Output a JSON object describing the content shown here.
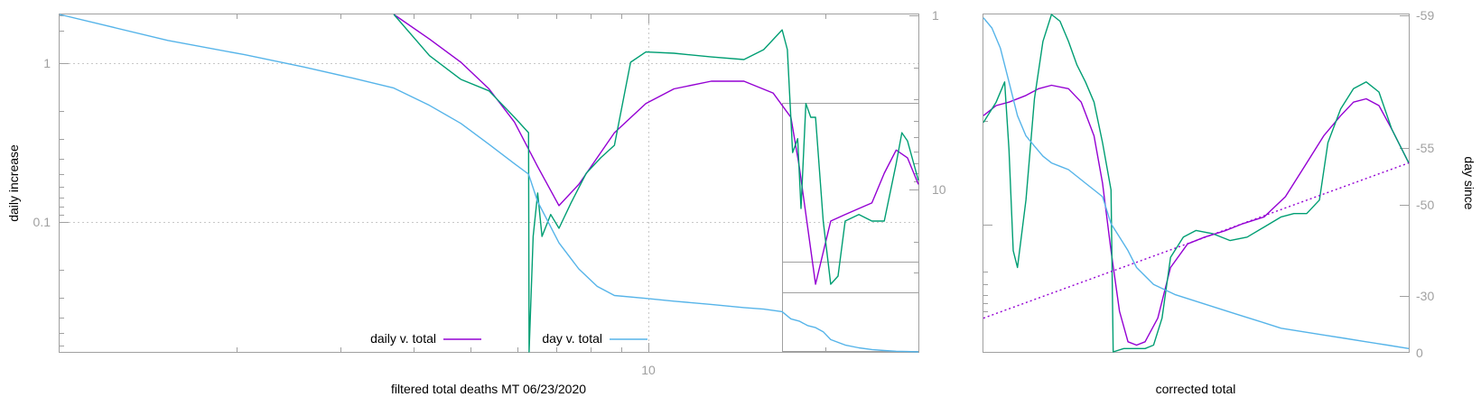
{
  "colors": {
    "purple": "#9400d3",
    "green": "#009e73",
    "blue": "#56b4e9",
    "axis": "#a0a0a0",
    "grid": "#c8c8c8"
  },
  "chart_data": [
    {
      "type": "line",
      "title": "",
      "xlabel": "filtered total deaths MT 06/23/2020",
      "ylabel": "daily increase",
      "xscale": "log",
      "yscale": "log",
      "xlim": [
        1,
        25
      ],
      "ylim": [
        0.015,
        2
      ],
      "y2lim": [
        1,
        30
      ],
      "y2scale": "log",
      "grid": true,
      "x_tick_labels": [
        {
          "value": 10,
          "label": "10"
        }
      ],
      "y_tick_labels": [
        {
          "value": 1,
          "label": "1"
        },
        {
          "value": 0.1,
          "label": "0.1"
        }
      ],
      "y2_tick_labels": [
        {
          "value": 1,
          "label": "1"
        },
        {
          "value": 10,
          "label": "10"
        }
      ],
      "legend": {
        "placement": "bottom-center",
        "entries": [
          {
            "label": "daily v. total",
            "color": "#9400d3"
          },
          {
            "label": "day v. total",
            "color": "#56b4e9"
          }
        ]
      },
      "series": [
        {
          "name": "daily v. total",
          "color": "#9400d3",
          "x": [
            3.5,
            4.0,
            4.5,
            5.0,
            5.5,
            6.0,
            6.5,
            7.0,
            8.0,
            9.0,
            10.0,
            11.5,
            13.0,
            14.5,
            15.5,
            16.0,
            17.0,
            18.0,
            19.0,
            20.0,
            21.0,
            22.0,
            23.0,
            24.0,
            25.0
          ],
          "y": [
            2.0,
            1.4,
            1.0,
            0.68,
            0.42,
            0.22,
            0.125,
            0.17,
            0.36,
            0.55,
            0.68,
            0.76,
            0.76,
            0.64,
            0.45,
            0.22,
            0.04,
            0.1,
            0.11,
            0.12,
            0.13,
            0.2,
            0.28,
            0.25,
            0.17
          ]
        },
        {
          "name": "",
          "color": "#009e73",
          "x": [
            3.5,
            4.0,
            4.5,
            5.0,
            5.5,
            5.8,
            5.81,
            5.9,
            6.0,
            6.1,
            6.3,
            6.5,
            6.8,
            7.2,
            7.6,
            8.0,
            8.5,
            9.0,
            10.0,
            11.5,
            13.0,
            14.0,
            15.0,
            15.3,
            15.6,
            15.9,
            16.1,
            16.4,
            16.7,
            17.0,
            17.5,
            18.0,
            18.5,
            19.0,
            20.0,
            21.0,
            21.5,
            22.0,
            23.0,
            23.5,
            24.0,
            25.0
          ],
          "y": [
            2.0,
            1.1,
            0.78,
            0.66,
            0.45,
            0.36,
            0.015,
            0.08,
            0.15,
            0.08,
            0.11,
            0.09,
            0.13,
            0.2,
            0.25,
            0.3,
            1.0,
            1.16,
            1.14,
            1.08,
            1.04,
            1.2,
            1.6,
            1.2,
            0.27,
            0.33,
            0.12,
            0.55,
            0.45,
            0.45,
            0.1,
            0.04,
            0.045,
            0.1,
            0.11,
            0.1,
            0.1,
            0.1,
            0.23,
            0.36,
            0.32,
            0.18
          ]
        },
        {
          "name": "day v. total",
          "color": "#56b4e9",
          "axis": "y2",
          "x": [
            1.0,
            1.5,
            2.0,
            2.5,
            3.0,
            3.5,
            4.0,
            4.5,
            5.0,
            5.5,
            5.8,
            6.0,
            6.5,
            7.0,
            7.5,
            8.0,
            9.0,
            10.0,
            11.5,
            13.0,
            14.0,
            15.0,
            15.5,
            16.0,
            16.5,
            17.0,
            17.5,
            18.0,
            19.0,
            20.0,
            21.0,
            22.0,
            23.0,
            24.0,
            25.0
          ],
          "y": [
            1.0,
            1.3,
            1.5,
            1.7,
            1.9,
            2.1,
            2.5,
            3.0,
            3.7,
            4.5,
            5.0,
            6.6,
            10.0,
            13.0,
            15.5,
            17.0,
            17.5,
            18.0,
            18.6,
            19.2,
            19.5,
            20.0,
            21.5,
            22.0,
            23.0,
            23.5,
            24.5,
            26.5,
            28.0,
            28.8,
            29.3,
            29.6,
            29.8,
            29.9,
            30.0
          ]
        }
      ]
    },
    {
      "type": "line",
      "title": "",
      "xlabel": "corrected total",
      "ylabel": "day since",
      "xlim": [
        0,
        100
      ],
      "ylim": [
        -59,
        0
      ],
      "y2_tick_labels": [
        {
          "value": -59,
          "label": "-59"
        },
        {
          "value": -55,
          "label": "-55"
        },
        {
          "value": -50,
          "label": "-50"
        },
        {
          "value": -30,
          "label": "-30"
        },
        {
          "value": 0,
          "label": "0"
        }
      ],
      "series": [
        {
          "name": "",
          "color": "#9400d3",
          "x": [
            0,
            3,
            6,
            10,
            13,
            16,
            20,
            23,
            26,
            28,
            30,
            32,
            34,
            36,
            38,
            41,
            44,
            48,
            52,
            57,
            61,
            66,
            71,
            76,
            80,
            84,
            87,
            90,
            93,
            96,
            100
          ],
          "y": [
            0.7,
            0.73,
            0.74,
            0.76,
            0.78,
            0.79,
            0.78,
            0.74,
            0.64,
            0.5,
            0.3,
            0.12,
            0.03,
            0.02,
            0.03,
            0.1,
            0.25,
            0.32,
            0.34,
            0.36,
            0.38,
            0.4,
            0.46,
            0.56,
            0.64,
            0.7,
            0.74,
            0.75,
            0.73,
            0.66,
            0.56
          ]
        },
        {
          "name": "",
          "color": "#009e73",
          "x": [
            0,
            3,
            5,
            6,
            7,
            8,
            10,
            12,
            14,
            16,
            18,
            20,
            22,
            24,
            26,
            28,
            30,
            30.5,
            33,
            36,
            38,
            40,
            42,
            44,
            47,
            50,
            54,
            58,
            62,
            66,
            70,
            73,
            76,
            79,
            81,
            84,
            87,
            90,
            93,
            96,
            100
          ],
          "y": [
            0.68,
            0.74,
            0.8,
            0.6,
            0.3,
            0.25,
            0.45,
            0.75,
            0.92,
            1.0,
            0.98,
            0.92,
            0.85,
            0.8,
            0.74,
            0.62,
            0.48,
            0.0,
            0.01,
            0.01,
            0.01,
            0.02,
            0.1,
            0.28,
            0.34,
            0.36,
            0.35,
            0.33,
            0.34,
            0.37,
            0.4,
            0.41,
            0.41,
            0.45,
            0.62,
            0.72,
            0.78,
            0.8,
            0.77,
            0.66,
            0.56
          ]
        },
        {
          "name": "",
          "color": "#56b4e9",
          "x": [
            0,
            2,
            4,
            6,
            8,
            10,
            12,
            14,
            16,
            18,
            20,
            22,
            24,
            26,
            28,
            30,
            32,
            34,
            36,
            40,
            45,
            50,
            55,
            60,
            65,
            70,
            75,
            80,
            85,
            90,
            95,
            100
          ],
          "y": [
            0.99,
            0.96,
            0.9,
            0.8,
            0.7,
            0.64,
            0.61,
            0.58,
            0.56,
            0.55,
            0.54,
            0.52,
            0.5,
            0.48,
            0.46,
            0.38,
            0.34,
            0.3,
            0.25,
            0.2,
            0.17,
            0.15,
            0.13,
            0.11,
            0.09,
            0.07,
            0.06,
            0.05,
            0.04,
            0.03,
            0.02,
            0.01
          ]
        },
        {
          "name": "",
          "color": "#9400d3",
          "style": "dotted",
          "x": [
            0,
            100
          ],
          "y": [
            0.1,
            0.56
          ]
        }
      ]
    }
  ]
}
